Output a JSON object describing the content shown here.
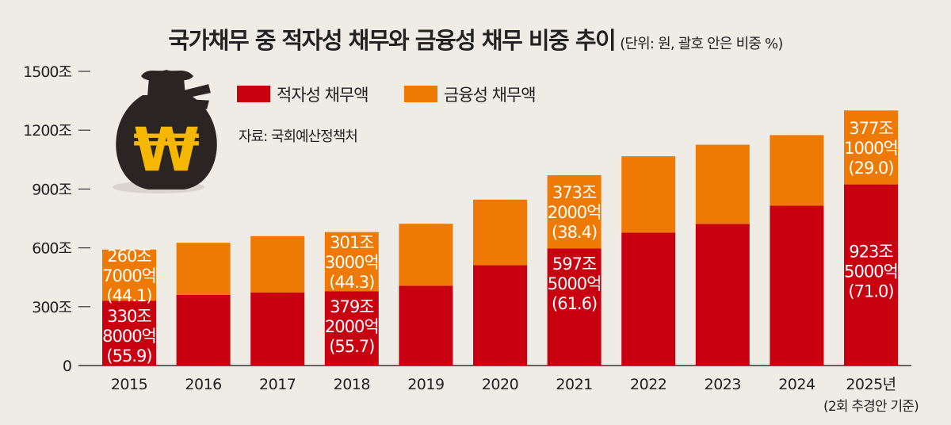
{
  "title": "국가채무 중 적자성 채무와 금융성 채무 비중 추이",
  "subtitle": "(단위: 원, 괄호 안은 비중 %)",
  "source": "자료: 국회예산정책처",
  "icon": "money-bag-won-icon",
  "icon_glyph": "₩",
  "colors": {
    "deficit": "#c8000f",
    "financial": "#ee7a05",
    "background": "#efece6",
    "bag": "#2a2523",
    "won": "#f6b700"
  },
  "chart_data": {
    "type": "bar",
    "stacked": true,
    "title": "국가채무 중 적자성 채무와 금융성 채무 비중 추이",
    "unit_note": "(단위: 원, 괄호 안은 비중 %)",
    "ylim": [
      0,
      1500
    ],
    "y_ticks": [
      {
        "value": 0,
        "label": "0"
      },
      {
        "value": 300,
        "label": "300조"
      },
      {
        "value": 600,
        "label": "600조"
      },
      {
        "value": 900,
        "label": "900조"
      },
      {
        "value": 1200,
        "label": "1200조"
      },
      {
        "value": 1500,
        "label": "1500조"
      }
    ],
    "categories": [
      "2015",
      "2016",
      "2017",
      "2018",
      "2019",
      "2020",
      "2021",
      "2022",
      "2023",
      "2024",
      "2025년"
    ],
    "category_note": "(2회 추경안 기준)",
    "legend_position": "top-left",
    "grid": false,
    "series": [
      {
        "name": "적자성 채무액",
        "color": "#c8000f",
        "values": [
          330.8,
          360,
          373,
          379.2,
          407,
          512,
          597.5,
          678,
          722,
          815,
          923.5
        ]
      },
      {
        "name": "금융성 채무액",
        "color": "#ee7a05",
        "values": [
          260.7,
          266,
          287,
          301.3,
          316,
          334,
          373.2,
          389,
          404,
          360,
          377.1
        ]
      }
    ],
    "data_labels": [
      {
        "category": "2015",
        "series": 0,
        "lines": [
          "330조",
          "8000억",
          "(55.9)"
        ]
      },
      {
        "category": "2015",
        "series": 1,
        "lines": [
          "260조",
          "7000억",
          "(44.1)"
        ]
      },
      {
        "category": "2018",
        "series": 0,
        "lines": [
          "379조",
          "2000억",
          "(55.7)"
        ]
      },
      {
        "category": "2018",
        "series": 1,
        "lines": [
          "301조",
          "3000억",
          "(44.3)"
        ]
      },
      {
        "category": "2021",
        "series": 0,
        "lines": [
          "597조",
          "5000억",
          "(61.6)"
        ]
      },
      {
        "category": "2021",
        "series": 1,
        "lines": [
          "373조",
          "2000억",
          "(38.4)"
        ]
      },
      {
        "category": "2025년",
        "series": 0,
        "lines": [
          "923조",
          "5000억",
          "(71.0)"
        ]
      },
      {
        "category": "2025년",
        "series": 1,
        "lines": [
          "377조",
          "1000억",
          "(29.0)"
        ]
      }
    ]
  }
}
